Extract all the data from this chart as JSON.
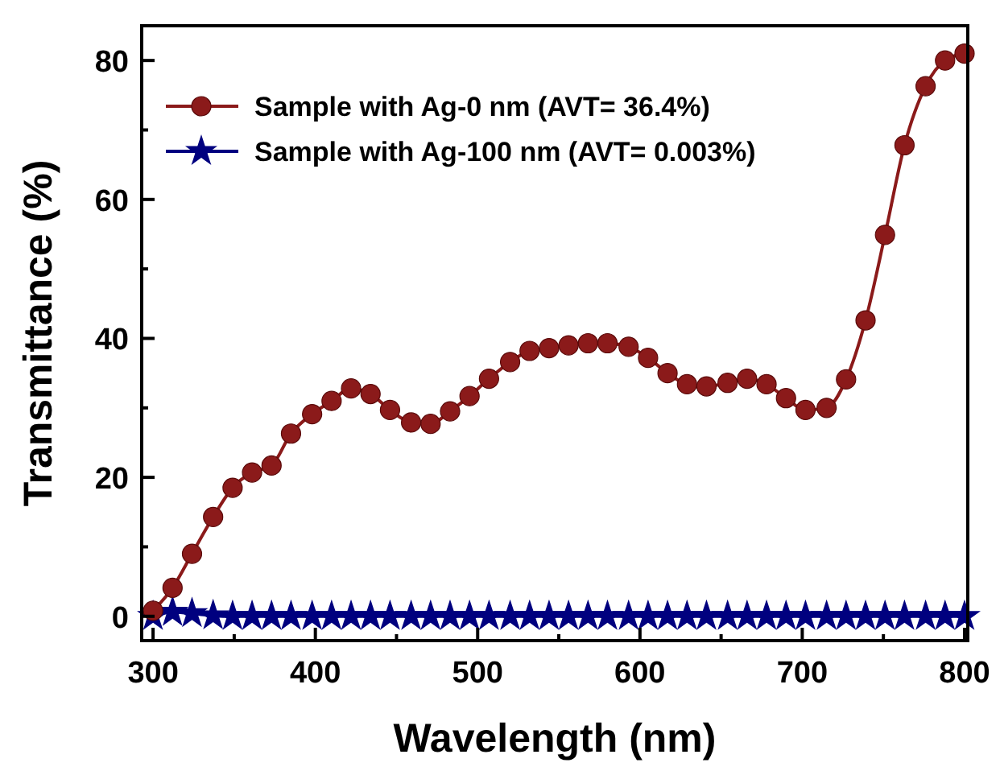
{
  "chart_data": {
    "type": "line",
    "xlabel": "Wavelength (nm)",
    "ylabel": "Transmittance (%)",
    "x": [
      300,
      312,
      324,
      337,
      349,
      361,
      373,
      385,
      398,
      410,
      422,
      434,
      446,
      459,
      471,
      483,
      495,
      507,
      520,
      532,
      544,
      556,
      568,
      580,
      593,
      605,
      617,
      629,
      641,
      654,
      666,
      678,
      690,
      702,
      715,
      727,
      739,
      751,
      763,
      776,
      788,
      800
    ],
    "series": [
      {
        "name": "Sample with Ag-0 nm (AVT= 36.4%)",
        "color": "#8b1a1a",
        "marker": "circle",
        "values": [
          0.8,
          4.1,
          9.0,
          14.3,
          18.5,
          20.7,
          21.7,
          26.3,
          29.1,
          31.0,
          32.8,
          32.0,
          29.7,
          27.9,
          27.7,
          29.5,
          31.7,
          34.2,
          36.6,
          38.2,
          38.6,
          39.0,
          39.3,
          39.3,
          38.8,
          37.2,
          35.0,
          33.4,
          33.1,
          33.6,
          34.2,
          33.4,
          31.4,
          29.7,
          30.0,
          34.1,
          42.6,
          54.9,
          67.8,
          76.3,
          80.0,
          81.0
        ]
      },
      {
        "name": "Sample with Ag-100 nm (AVT= 0.003%)",
        "color": "#00007f",
        "marker": "star",
        "values": [
          0,
          0.6,
          0.4,
          0.1,
          0,
          0,
          0,
          0,
          0,
          0,
          0,
          0,
          0,
          0,
          0,
          0,
          0,
          0,
          0,
          0,
          0,
          0,
          0,
          0,
          0,
          0,
          0,
          0,
          0,
          0,
          0,
          0,
          0,
          0,
          0,
          0,
          0,
          0,
          0,
          0,
          0,
          0
        ]
      }
    ],
    "xlim": [
      293,
      802
    ],
    "ylim": [
      -3.5,
      85
    ],
    "xticks": [
      300,
      {
        "value": 350,
        "label": null
      },
      400,
      {
        "value": 450,
        "label": null
      },
      500,
      {
        "value": 550,
        "label": null
      },
      600,
      {
        "value": 650,
        "label": null
      },
      700,
      {
        "value": 750,
        "label": null
      },
      800
    ],
    "yticks": [
      0,
      {
        "value": 10,
        "label": null
      },
      20,
      {
        "value": 30,
        "label": null
      },
      40,
      {
        "value": 50,
        "label": null
      },
      60,
      {
        "value": 70,
        "label": null
      },
      80
    ],
    "legend": "top left",
    "grid": false
  }
}
